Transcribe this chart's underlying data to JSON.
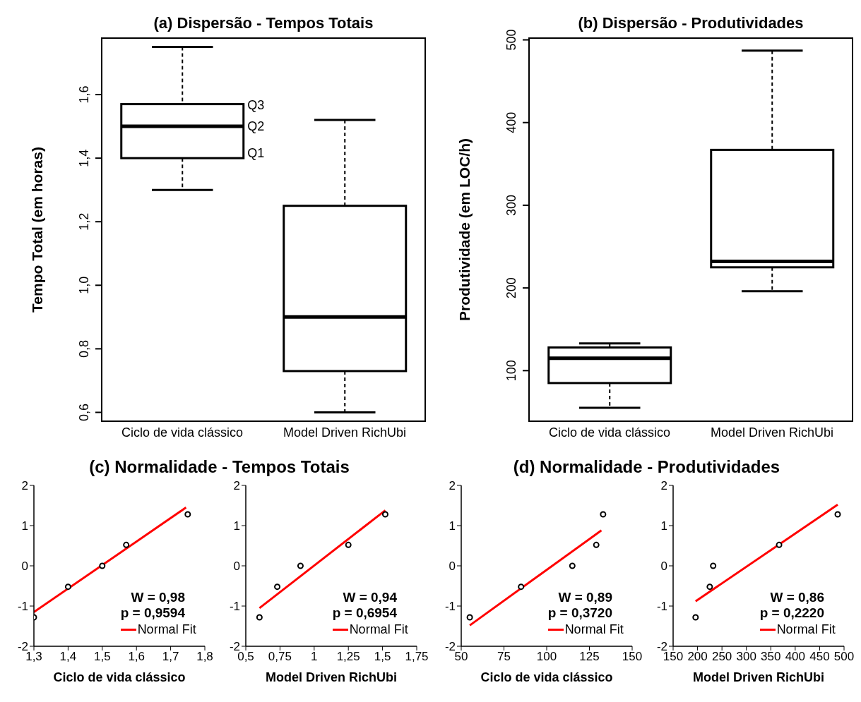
{
  "chart_data": [
    {
      "type": "box",
      "title": "(a) Dispersão - Tempos Totais",
      "ylabel": "Tempo Total (em horas)",
      "categories": [
        "Ciclo de vida clássico",
        "Model Driven RichUbi"
      ],
      "boxes": [
        {
          "low": 1.3,
          "q1": 1.4,
          "median": 1.5,
          "q3": 1.57,
          "high": 1.75
        },
        {
          "low": 0.6,
          "q1": 0.73,
          "median": 0.9,
          "q3": 1.25,
          "high": 1.52
        }
      ],
      "ylim": [
        0.57,
        1.78
      ],
      "yticks": [
        {
          "value": 0.6,
          "label": "0,6"
        },
        {
          "value": 0.8,
          "label": "0,8"
        },
        {
          "value": 1.0,
          "label": "1,0"
        },
        {
          "value": 1.2,
          "label": "1,2"
        },
        {
          "value": 1.4,
          "label": "1,4"
        },
        {
          "value": 1.6,
          "label": "1,6"
        }
      ],
      "annotations": [
        "Q3",
        "Q2",
        "Q1"
      ]
    },
    {
      "type": "box",
      "title": "(b) Dispersão - Produtividades",
      "ylabel": "Produtividade (em LOC/h)",
      "categories": [
        "Ciclo de vida clássico",
        "Model Driven RichUbi"
      ],
      "boxes": [
        {
          "low": 55,
          "q1": 85,
          "median": 115,
          "q3": 128,
          "high": 133
        },
        {
          "low": 196,
          "q1": 225,
          "median": 232,
          "q3": 367,
          "high": 487
        }
      ],
      "ylim": [
        38,
        503
      ],
      "yticks": [
        100,
        200,
        300,
        400,
        500
      ]
    },
    {
      "type": "scatter",
      "title": "(c) Normalidade - Tempos Totais",
      "xlabel": "Ciclo de vida clássico",
      "xlim": [
        1.3,
        1.8
      ],
      "xticks": [
        {
          "value": 1.3,
          "label": "1,3"
        },
        {
          "value": 1.4,
          "label": "1,4"
        },
        {
          "value": 1.5,
          "label": "1,5"
        },
        {
          "value": 1.6,
          "label": "1,6"
        },
        {
          "value": 1.7,
          "label": "1,7"
        },
        {
          "value": 1.8,
          "label": "1,8"
        }
      ],
      "ylim": [
        -2,
        2
      ],
      "yticks": [
        -2,
        -1,
        0,
        1,
        2
      ],
      "legend": "bottom right",
      "annotations": [
        "W = 0,98",
        "p = 0,9594"
      ],
      "series": [
        {
          "color": "#000000",
          "marker": "circle",
          "x": [
            1.3,
            1.4,
            1.5,
            1.57,
            1.75
          ],
          "values": [
            -1.28,
            -0.52,
            0,
            0.52,
            1.28
          ]
        },
        {
          "name": "Normal Fit",
          "type": "line",
          "marker": "none",
          "color": "#ff0000",
          "x": [
            1.3,
            1.745
          ],
          "values": [
            -1.15,
            1.45
          ]
        }
      ]
    },
    {
      "type": "scatter",
      "xlabel": "Model Driven RichUbi",
      "xlim": [
        0.5,
        1.75
      ],
      "xticks": [
        {
          "value": 0.5,
          "label": "0,5"
        },
        {
          "value": 0.75,
          "label": "0,75"
        },
        1,
        {
          "value": 1.25,
          "label": "1,25"
        },
        {
          "value": 1.5,
          "label": "1,5"
        },
        {
          "value": 1.75,
          "label": "1,75"
        }
      ],
      "ylim": [
        -2,
        2
      ],
      "yticks": [
        -2,
        -1,
        0,
        1,
        2
      ],
      "legend": "bottom right",
      "annotations": [
        "W = 0,94",
        "p = 0,6954"
      ],
      "series": [
        {
          "color": "#000000",
          "marker": "circle",
          "x": [
            0.6,
            0.73,
            0.9,
            1.25,
            1.52
          ],
          "values": [
            -1.28,
            -0.52,
            0,
            0.52,
            1.28
          ]
        },
        {
          "name": "Normal Fit",
          "type": "line",
          "marker": "none",
          "color": "#ff0000",
          "x": [
            0.6,
            1.52
          ],
          "values": [
            -1.05,
            1.38
          ]
        }
      ]
    },
    {
      "type": "scatter",
      "title": "(d) Normalidade - Produtividades",
      "xlabel": "Ciclo de vida clássico",
      "xlim": [
        50,
        150
      ],
      "xticks": [
        50,
        75,
        100,
        125,
        150
      ],
      "ylim": [
        -2,
        2
      ],
      "yticks": [
        -2,
        -1,
        0,
        1,
        2
      ],
      "legend": "bottom right",
      "annotations": [
        "W = 0,89",
        "p = 0,3720"
      ],
      "series": [
        {
          "color": "#000000",
          "marker": "circle",
          "x": [
            55,
            85,
            115,
            129,
            133
          ],
          "values": [
            -1.28,
            -0.52,
            0,
            0.52,
            1.28
          ]
        },
        {
          "name": "Normal Fit",
          "type": "line",
          "marker": "none",
          "color": "#ff0000",
          "x": [
            55,
            132
          ],
          "values": [
            -1.48,
            0.88
          ]
        }
      ]
    },
    {
      "type": "scatter",
      "xlabel": "Model Driven RichUbi",
      "xlim": [
        150,
        500
      ],
      "xticks": [
        150,
        200,
        250,
        300,
        350,
        400,
        450,
        500
      ],
      "ylim": [
        -2,
        2
      ],
      "yticks": [
        -2,
        -1,
        0,
        1,
        2
      ],
      "legend": "bottom right",
      "annotations": [
        "W = 0,86",
        "p = 0,2220"
      ],
      "series": [
        {
          "color": "#000000",
          "marker": "circle",
          "x": [
            196,
            225,
            232,
            367,
            487
          ],
          "values": [
            -1.28,
            -0.52,
            0,
            0.52,
            1.28
          ]
        },
        {
          "name": "Normal Fit",
          "type": "line",
          "marker": "none",
          "color": "#ff0000",
          "x": [
            196,
            487
          ],
          "values": [
            -0.88,
            1.52
          ]
        }
      ]
    }
  ]
}
